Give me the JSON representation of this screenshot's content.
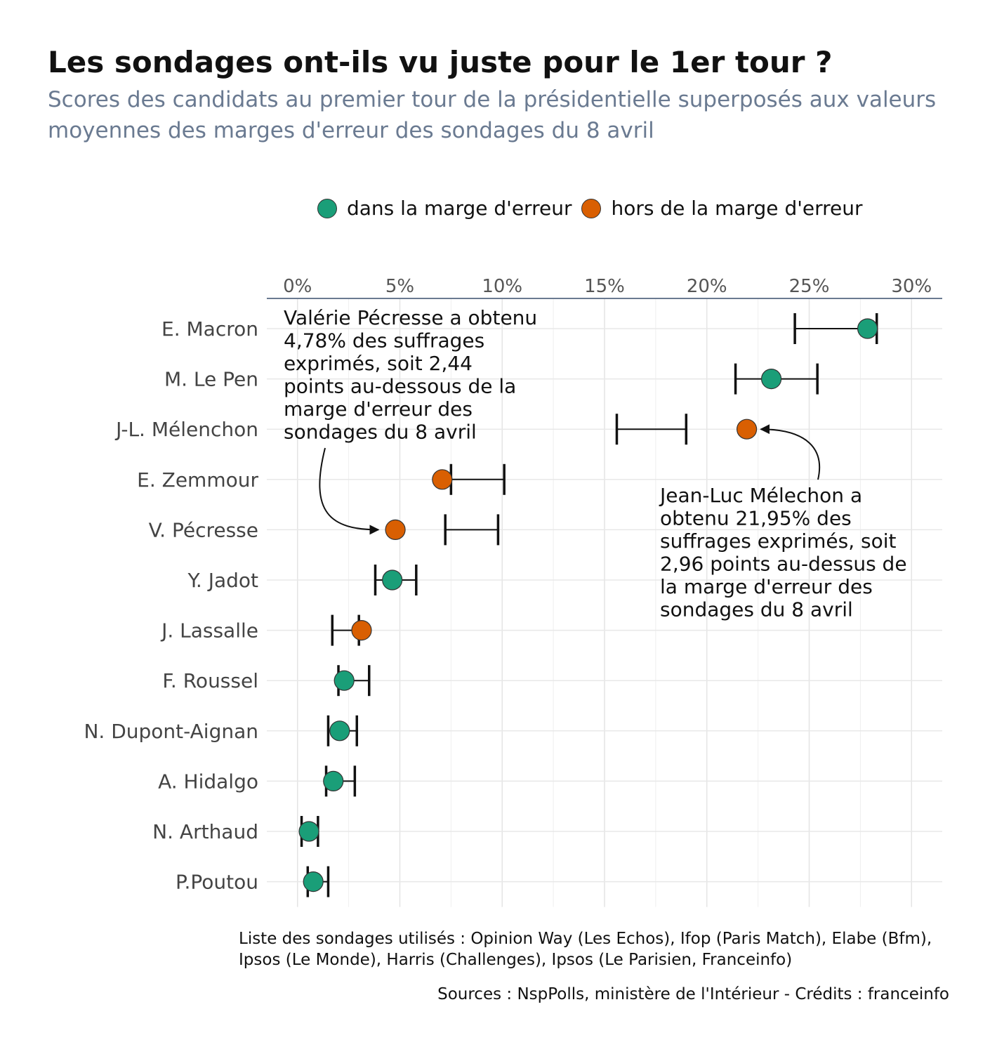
{
  "title": "Les sondages ont-ils vu juste pour le 1er tour ?",
  "subtitle": "Scores des candidats au premier tour de la présidentielle superposés aux valeurs moyennes des marges d'erreur des sondages du 8 avril",
  "legend": {
    "inside_label": "dans la marge d'erreur",
    "outside_label": "hors de la marge d'erreur",
    "inside_color": "#1a9e78",
    "outside_color": "#d95f02"
  },
  "footnote": "Liste des sondages utilisés : Opinion Way (Les Echos), Ifop (Paris Match), Elabe (Bfm), Ipsos (Le Monde), Harris (Challenges), Ipsos (Le Parisien, Franceinfo)",
  "sources": "Sources : NspPolls, ministère de l'Intérieur - Crédits : franceinfo",
  "chart_data": {
    "type": "scatter",
    "axis_position": "top",
    "xlim": [
      -1.5,
      31.5
    ],
    "x_ticks": [
      0,
      5,
      10,
      15,
      20,
      25,
      30
    ],
    "x_tick_labels": [
      "0%",
      "5%",
      "10%",
      "15%",
      "20%",
      "25%",
      "30%"
    ],
    "grid": true,
    "legend_position": "top",
    "candidates": [
      {
        "name": "E. Macron",
        "score": 27.85,
        "ci_low": 24.3,
        "ci_high": 28.3,
        "status": "inside"
      },
      {
        "name": "M. Le Pen",
        "score": 23.15,
        "ci_low": 21.4,
        "ci_high": 25.4,
        "status": "inside"
      },
      {
        "name": "J-L. Mélenchon",
        "score": 21.95,
        "ci_low": 15.6,
        "ci_high": 18.99,
        "status": "outside"
      },
      {
        "name": "E. Zemmour",
        "score": 7.07,
        "ci_low": 7.5,
        "ci_high": 10.1,
        "status": "outside"
      },
      {
        "name": "V. Pécresse",
        "score": 4.78,
        "ci_low": 7.22,
        "ci_high": 9.8,
        "status": "outside"
      },
      {
        "name": "Y. Jadot",
        "score": 4.63,
        "ci_low": 3.8,
        "ci_high": 5.8,
        "status": "inside"
      },
      {
        "name": "J. Lassalle",
        "score": 3.13,
        "ci_low": 1.7,
        "ci_high": 3.0,
        "status": "outside"
      },
      {
        "name": "F. Roussel",
        "score": 2.28,
        "ci_low": 2.0,
        "ci_high": 3.5,
        "status": "inside"
      },
      {
        "name": "N. Dupont-Aignan",
        "score": 2.06,
        "ci_low": 1.5,
        "ci_high": 2.9,
        "status": "inside"
      },
      {
        "name": "A. Hidalgo",
        "score": 1.75,
        "ci_low": 1.4,
        "ci_high": 2.8,
        "status": "inside"
      },
      {
        "name": "N. Arthaud",
        "score": 0.56,
        "ci_low": 0.2,
        "ci_high": 1.0,
        "status": "inside"
      },
      {
        "name": "P.Poutou",
        "score": 0.77,
        "ci_low": 0.5,
        "ci_high": 1.5,
        "status": "inside"
      }
    ],
    "annotations": [
      {
        "text_lines": [
          "Valérie Pécresse a obtenu",
          "4,78% des suffrages",
          "exprimés, soit 2,44",
          "points au-dessous de la",
          "marge d'erreur des",
          "sondages du 8 avril"
        ],
        "target": "V. Pécresse"
      },
      {
        "text_lines": [
          "Jean-Luc Mélechon a",
          "obtenu 21,95% des",
          "suffrages exprimés, soit",
          "2,96 points au-dessus de",
          "la marge d'erreur des",
          "sondages du 8 avril"
        ],
        "target": "J-L. Mélenchon"
      }
    ]
  }
}
